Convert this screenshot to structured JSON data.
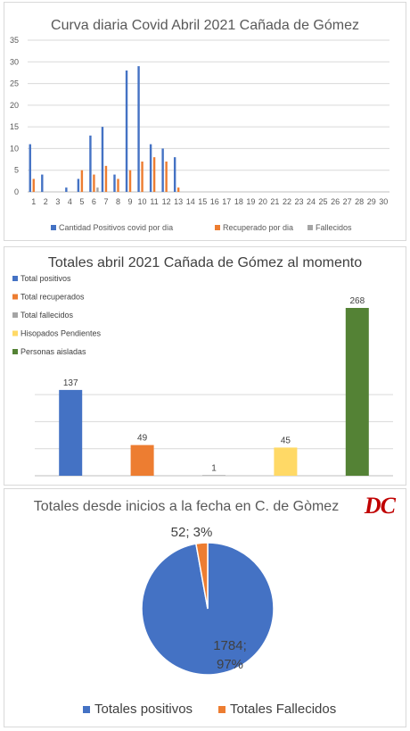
{
  "colors": {
    "blue": "#4472c4",
    "orange": "#ed7d31",
    "gray": "#a5a5a5",
    "yellow": "#ffd966",
    "green": "#548235"
  },
  "logo_text": "DC",
  "chart_data": [
    {
      "type": "bar",
      "title": "Curva diaria Covid Abril 2021 Cañada de Gómez",
      "x": [
        1,
        2,
        3,
        4,
        5,
        6,
        7,
        8,
        9,
        10,
        11,
        12,
        13,
        14,
        15,
        16,
        17,
        18,
        19,
        20,
        21,
        22,
        23,
        24,
        25,
        26,
        27,
        28,
        29,
        30
      ],
      "ylim": [
        0,
        35
      ],
      "yticks": [
        0,
        5,
        10,
        15,
        20,
        25,
        30,
        35
      ],
      "grid": true,
      "legend_position": "bottom",
      "series": [
        {
          "name": "Cantidad Positivos covid por dia",
          "color": "#4472c4",
          "values": [
            11,
            4,
            0,
            1,
            3,
            13,
            15,
            4,
            28,
            29,
            11,
            10,
            8,
            0,
            0,
            0,
            0,
            0,
            0,
            0,
            0,
            0,
            0,
            0,
            0,
            0,
            0,
            0,
            0,
            0
          ]
        },
        {
          "name": "Recuperado por dia",
          "color": "#ed7d31",
          "values": [
            3,
            0,
            0,
            0,
            5,
            4,
            6,
            3,
            5,
            7,
            8,
            7,
            1,
            0,
            0,
            0,
            0,
            0,
            0,
            0,
            0,
            0,
            0,
            0,
            0,
            0,
            0,
            0,
            0,
            0
          ]
        },
        {
          "name": "Fallecidos",
          "color": "#a5a5a5",
          "values": [
            0,
            0,
            0,
            0,
            0,
            1,
            0,
            0,
            0,
            0,
            0,
            0,
            0,
            0,
            0,
            0,
            0,
            0,
            0,
            0,
            0,
            0,
            0,
            0,
            0,
            0,
            0,
            0,
            0,
            0
          ]
        }
      ]
    },
    {
      "type": "bar",
      "title": "Totales abril 2021 Cañada de Gómez al momento",
      "grid": true,
      "legend_position": "top-left",
      "series": [
        {
          "name": "Total positivos",
          "value": 137,
          "label": "137",
          "color": "#4472c4"
        },
        {
          "name": "Total recuperados",
          "value": 49,
          "label": "49",
          "color": "#ed7d31"
        },
        {
          "name": "Total fallecidos",
          "value": 1,
          "label": "1",
          "color": "#a5a5a5"
        },
        {
          "name": "Hisopados Pendientes",
          "value": 45,
          "label": "45",
          "color": "#ffd966"
        },
        {
          "name": "Personas aisladas",
          "value": 268,
          "label": "268",
          "color": "#548235"
        }
      ]
    },
    {
      "type": "pie",
      "title": "Totales desde inicios a la fecha en C. de Gòmez",
      "legend_position": "bottom",
      "slices": [
        {
          "name": "Totales positivos",
          "value": 1784,
          "percent": 97,
          "label_a": "1784;",
          "label_b": "97%",
          "color": "#4472c4"
        },
        {
          "name": "Totales Fallecidos",
          "value": 52,
          "percent": 3,
          "label_a": "52; 3%",
          "label_b": "",
          "color": "#ed7d31"
        }
      ]
    }
  ]
}
